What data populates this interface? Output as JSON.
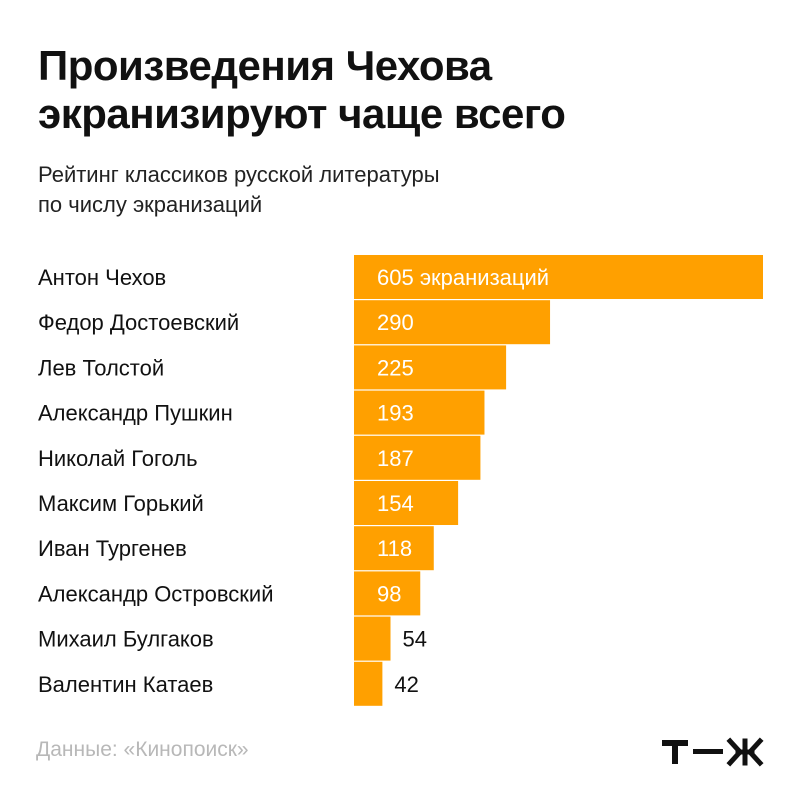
{
  "header": {
    "title_line1": "Произведения Чехова",
    "title_line2": "экранизируют чаще всего",
    "subtitle_line1": "Рейтинг классиков русской литературы",
    "subtitle_line2": "по числу экранизаций"
  },
  "footer": {
    "source": "Данные: «Кинопоиск»",
    "logo_text": "т—ж"
  },
  "colors": {
    "bar": "#FFA000",
    "label_inside": "#ffffff",
    "label_outside": "#111111"
  },
  "chart_data": {
    "type": "bar",
    "orientation": "horizontal",
    "title": "Произведения Чехова экранизируют чаще всего",
    "subtitle": "Рейтинг классиков русской литературы по числу экранизаций",
    "categories": [
      "Антон Чехов",
      "Федор Достоевский",
      "Лев Толстой",
      "Александр Пушкин",
      "Николай Гоголь",
      "Максим Горький",
      "Иван Тургенев",
      "Александр Островский",
      "Михаил Булгаков",
      "Валентин Катаев"
    ],
    "values": [
      605,
      290,
      225,
      193,
      187,
      154,
      118,
      98,
      54,
      42
    ],
    "data_labels": [
      "605 экранизаций",
      "290",
      "225",
      "193",
      "187",
      "154",
      "118",
      "98",
      "54",
      "42"
    ],
    "xlim": [
      0,
      605
    ],
    "grid": false,
    "legend": "none"
  }
}
